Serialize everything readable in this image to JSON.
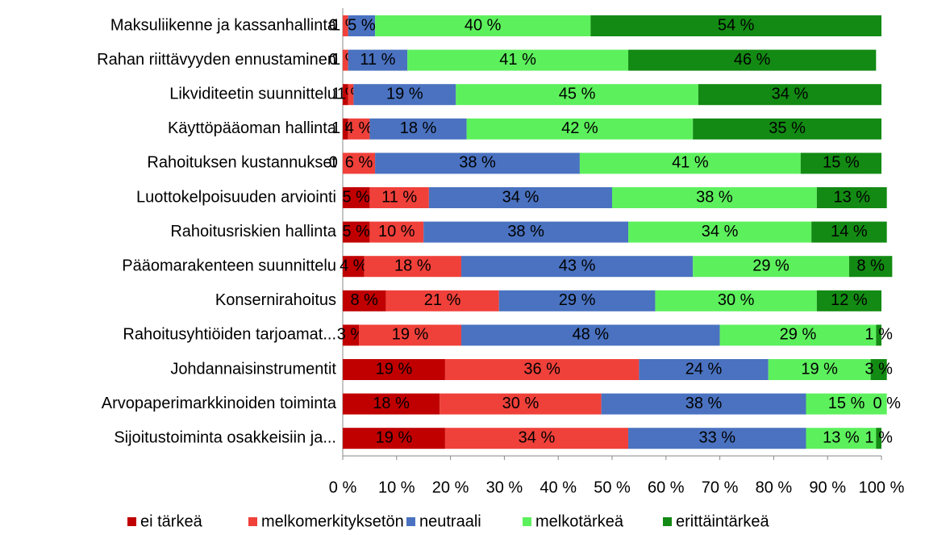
{
  "chart_data": {
    "type": "stacked_barh",
    "categories": [
      "Maksuliikenne ja kassanhallinta",
      "Rahan riittävyyden ennustaminen",
      "Likviditeetin suunnittelu",
      "Käyttöpääoman hallinta",
      "Rahoituksen kustannukset",
      "Luottokelpoisuuden arviointi",
      "Rahoitusriskien hallinta",
      "Pääomarakenteen suunnittelu",
      "Konsernirahoitus",
      "Rahoitusyhtiöiden tarjoamat...",
      "Johdannaisinstrumentit",
      "Arvopaperimarkkinoiden toiminta",
      "Sijoitustoiminta osakkeisiin ja..."
    ],
    "series": [
      {
        "name": "ei tärkeä",
        "color": "#c00000",
        "values": [
          0,
          0,
          1,
          1,
          0,
          5,
          5,
          4,
          8,
          3,
          19,
          18,
          19
        ],
        "value_labels": [
          "0 %",
          "0 %",
          "1 %",
          "1 %",
          "0 %",
          "5 %",
          "5 %",
          "4 %",
          "8 %",
          "3 %",
          "19 %",
          "18 %",
          "19 %"
        ]
      },
      {
        "name": "melkomerkityksetön",
        "color": "#f0403a",
        "values": [
          1,
          1,
          1,
          4,
          6,
          11,
          10,
          18,
          21,
          19,
          36,
          30,
          34
        ],
        "value_labels": [
          "1 %",
          "1 %",
          "1 %",
          "4 %",
          "6 %",
          "11 %",
          "10 %",
          "18 %",
          "21 %",
          "19 %",
          "36 %",
          "30 %",
          "34 %"
        ]
      },
      {
        "name": "neutraali",
        "color": "#4a72c0",
        "values": [
          5,
          11,
          19,
          18,
          38,
          34,
          38,
          43,
          29,
          48,
          24,
          38,
          33
        ],
        "value_labels": [
          "5 %",
          "11 %",
          "19 %",
          "18 %",
          "38 %",
          "34 %",
          "38 %",
          "43 %",
          "29 %",
          "48 %",
          "24 %",
          "38 %",
          "33 %"
        ]
      },
      {
        "name": "melkotärkeä",
        "color": "#5df05d",
        "values": [
          40,
          41,
          45,
          42,
          41,
          38,
          34,
          29,
          30,
          29,
          19,
          15,
          13
        ],
        "value_labels": [
          "40 %",
          "41 %",
          "45 %",
          "42 %",
          "41 %",
          "38 %",
          "34 %",
          "29 %",
          "30 %",
          "29 %",
          "19 %",
          "15 %",
          "13 %"
        ]
      },
      {
        "name": "erittäintärkeä",
        "color": "#138a13",
        "values": [
          54,
          46,
          34,
          35,
          15,
          13,
          14,
          8,
          12,
          1,
          3,
          0,
          1
        ],
        "value_labels": [
          "54 %",
          "46 %",
          "34 %",
          "35 %",
          "15 %",
          "13 %",
          "14 %",
          "8 %",
          "12 %",
          "1 %",
          "3 %",
          "0 %",
          "1 %"
        ]
      }
    ],
    "xlim": [
      0,
      100
    ],
    "xticks": [
      {
        "value": 0,
        "label": "0 %"
      },
      {
        "value": 10,
        "label": "10 %"
      },
      {
        "value": 20,
        "label": "20 %"
      },
      {
        "value": 30,
        "label": "30 %"
      },
      {
        "value": 40,
        "label": "40 %"
      },
      {
        "value": 50,
        "label": "50 %"
      },
      {
        "value": 60,
        "label": "60 %"
      },
      {
        "value": 70,
        "label": "70 %"
      },
      {
        "value": 80,
        "label": "80 %"
      },
      {
        "value": 90,
        "label": "90 %"
      },
      {
        "value": 100,
        "label": "100 %"
      }
    ],
    "grid": false
  }
}
